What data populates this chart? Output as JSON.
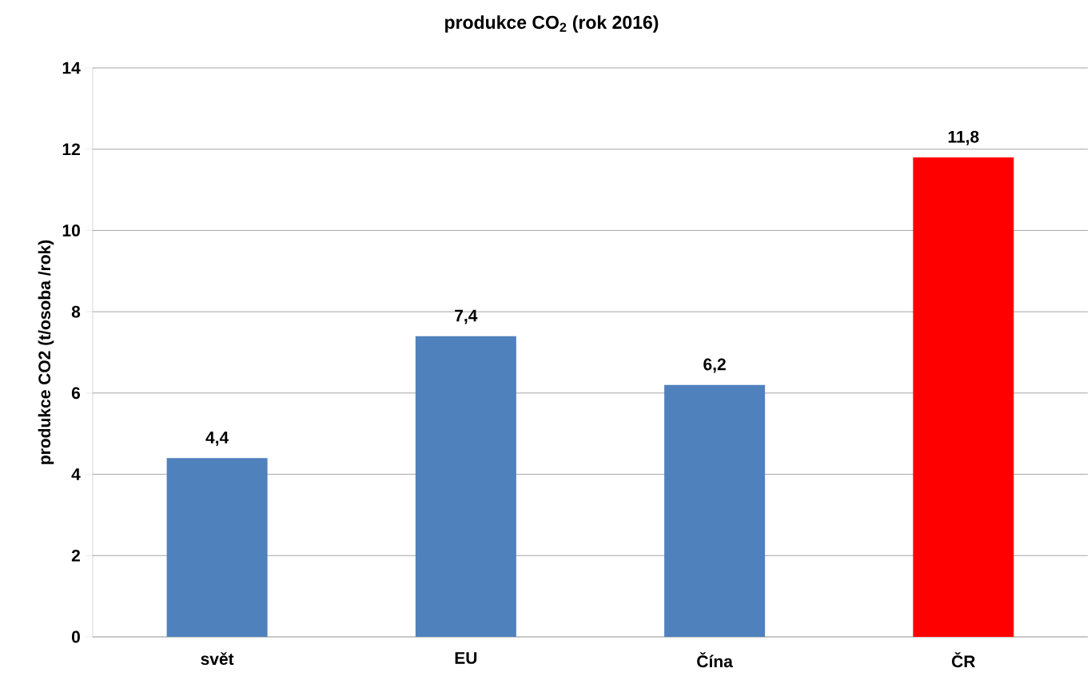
{
  "chart_data": {
    "type": "bar",
    "title": "produkce CO$_{2}$ (rok 2016)",
    "ylabel": "produkce CO2 (t/osoba /rok)",
    "categories": [
      "svět",
      "EU",
      "Čína",
      "ČR"
    ],
    "values": [
      4.4,
      7.4,
      6.2,
      11.8
    ],
    "value_labels": [
      "4,4",
      "7,4",
      "6,2",
      "11,8"
    ],
    "colors": [
      "#4f81bd",
      "#4f81bd",
      "#4f81bd",
      "#ff0000"
    ],
    "ylim": [
      0,
      14
    ],
    "yticks": [
      0,
      2,
      4,
      6,
      8,
      10,
      12,
      14
    ],
    "grid": "y"
  }
}
